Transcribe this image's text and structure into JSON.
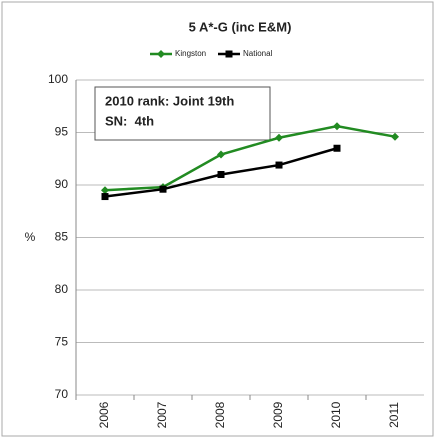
{
  "chart_data": {
    "type": "line",
    "title": "5 A*-G (inc E&M)",
    "y_label": "%",
    "categories": [
      "2006",
      "2007",
      "2008",
      "2009",
      "2010",
      "2011"
    ],
    "series": [
      {
        "name": "Kingston",
        "color": "#228B22",
        "marker": "diamond",
        "values": [
          89.5,
          89.8,
          92.9,
          94.5,
          95.6,
          94.6
        ]
      },
      {
        "name": "National",
        "color": "#000000",
        "marker": "square",
        "values": [
          88.9,
          89.6,
          91.0,
          91.9,
          93.5,
          null
        ]
      }
    ],
    "annotations": [
      "2010 rank: Joint 19th",
      "SN:  4th"
    ],
    "ylim": [
      70,
      100
    ],
    "yticks": [
      70,
      75,
      80,
      85,
      90,
      95,
      100
    ],
    "grid": true,
    "legend": "top"
  }
}
